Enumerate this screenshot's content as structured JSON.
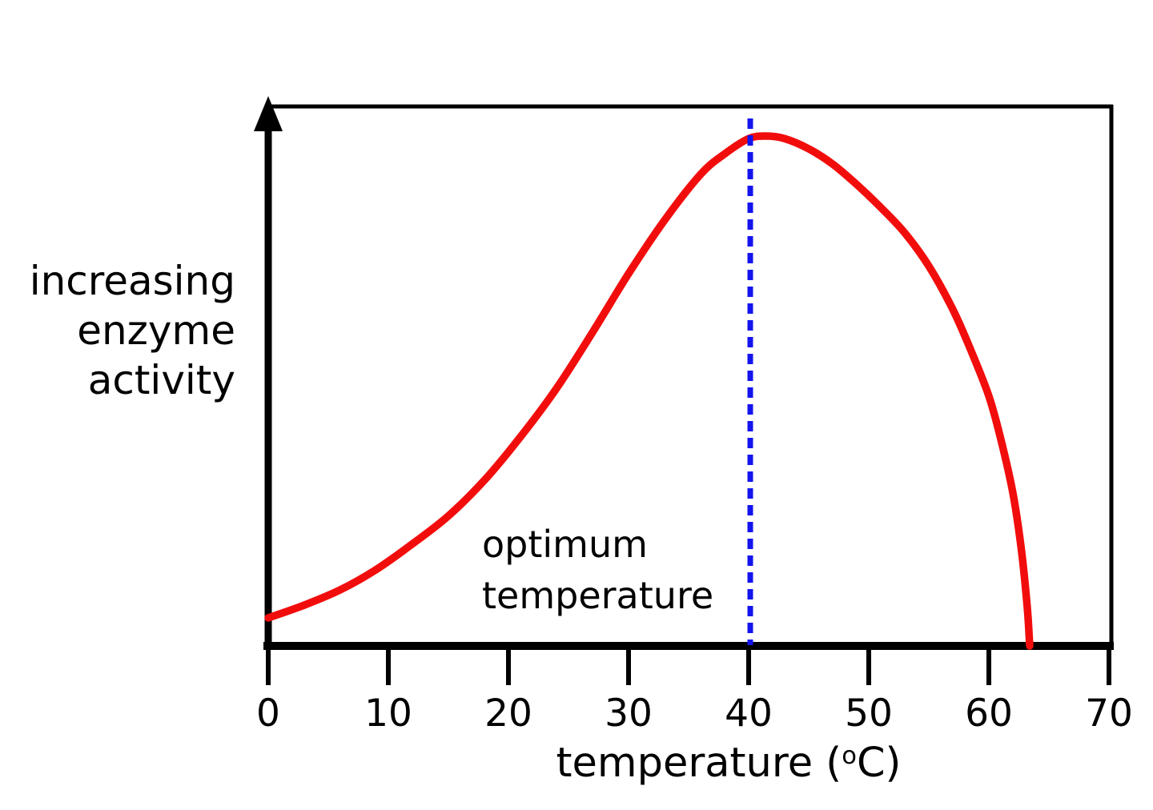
{
  "chart_data": {
    "type": "line",
    "title": "",
    "xlabel": {
      "prefix": "temperature (",
      "sup": "o",
      "suffix": "C)"
    },
    "ylabel_lines": [
      "increasing",
      "enzyme",
      "activity"
    ],
    "x_ticks": [
      0,
      10,
      20,
      30,
      40,
      50,
      60,
      70
    ],
    "xlim": [
      0,
      70
    ],
    "ylim": [
      0,
      1
    ],
    "grid": false,
    "legend": "none",
    "background": "#ffffff",
    "axis_color": "#000000",
    "series": [
      {
        "name": "enzyme activity",
        "color": "#f20d0d",
        "points": [
          [
            0,
            0.055
          ],
          [
            3,
            0.08
          ],
          [
            6,
            0.11
          ],
          [
            9,
            0.15
          ],
          [
            12,
            0.2
          ],
          [
            15,
            0.255
          ],
          [
            18,
            0.325
          ],
          [
            21,
            0.41
          ],
          [
            24,
            0.505
          ],
          [
            27,
            0.615
          ],
          [
            30,
            0.73
          ],
          [
            33,
            0.835
          ],
          [
            36,
            0.925
          ],
          [
            38,
            0.965
          ],
          [
            40,
            0.995
          ],
          [
            41.5,
            1.0
          ],
          [
            43,
            0.995
          ],
          [
            45,
            0.975
          ],
          [
            47,
            0.945
          ],
          [
            49,
            0.905
          ],
          [
            51,
            0.86
          ],
          [
            53,
            0.81
          ],
          [
            55,
            0.745
          ],
          [
            57,
            0.66
          ],
          [
            58.5,
            0.58
          ],
          [
            60,
            0.49
          ],
          [
            61,
            0.405
          ],
          [
            62,
            0.3
          ],
          [
            62.7,
            0.19
          ],
          [
            63.2,
            0.075
          ],
          [
            63.4,
            0.0
          ]
        ]
      }
    ],
    "annotations": {
      "optimum_line": {
        "x": 40,
        "style": "dashed",
        "color": "#1414ee",
        "label_lines": [
          "optimum",
          "temperature"
        ]
      }
    }
  }
}
